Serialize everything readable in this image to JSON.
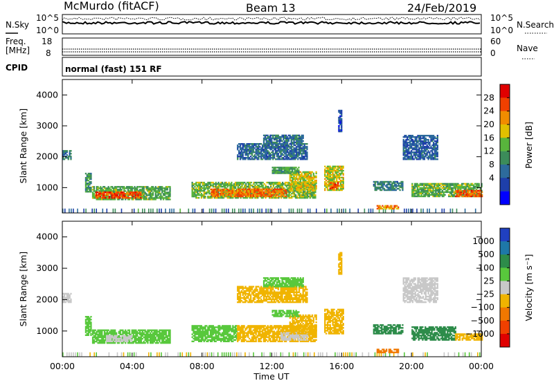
{
  "header": {
    "station": "McMurdo (fitACF)",
    "beam": "Beam 13",
    "date": "24/Feb/2019"
  },
  "noise_panel": {
    "left_label": "N.Sky",
    "right_label": "N.Search",
    "left_ticks": [
      "10^5",
      "10^0"
    ],
    "right_ticks": [
      "10^5",
      "10^0"
    ]
  },
  "freq_panel": {
    "left_label_1": "Freq.",
    "left_label_2": "[MHz]",
    "right_label": "Nave",
    "left_ticks": [
      "18",
      "8"
    ],
    "right_ticks": [
      "60",
      "0"
    ]
  },
  "cpid_panel": {
    "label": "CPID",
    "text": "normal (fast) 151 RF"
  },
  "chart_data": [
    {
      "type": "heatmap",
      "name_printed": "",
      "ylabel": "Slant Range [km]",
      "xlabel": "Time UT",
      "x_ticks": [
        "00:00",
        "04:00",
        "08:00",
        "12:00",
        "16:00",
        "20:00",
        "00:00"
      ],
      "y_ticks": [
        "1000",
        "2000",
        "3000",
        "4000"
      ],
      "xlim_hours": [
        0,
        24
      ],
      "ylim_km": [
        180,
        4500
      ],
      "colorbar": {
        "label": "Power [dB]",
        "ticks": [
          "28",
          "24",
          "20",
          "16",
          "12",
          "8",
          "4"
        ],
        "range": [
          0,
          30
        ],
        "colors": [
          "#0000ff",
          "#1e3faa",
          "#2d6b9c",
          "#3c8c5a",
          "#58b43c",
          "#e0c000",
          "#f08c00",
          "#f04000",
          "#e00000"
        ]
      },
      "regions": [
        {
          "t": [
            0.0,
            0.5
          ],
          "r": [
            1900,
            2200
          ],
          "v": 9
        },
        {
          "t": [
            1.3,
            1.6
          ],
          "r": [
            850,
            1450
          ],
          "v": 12
        },
        {
          "t": [
            1.7,
            6.2
          ],
          "r": [
            600,
            1050
          ],
          "v": 14
        },
        {
          "t": [
            1.9,
            4.5
          ],
          "r": [
            650,
            850
          ],
          "v": 25
        },
        {
          "t": [
            7.4,
            14.5
          ],
          "r": [
            650,
            1150
          ],
          "v": 15
        },
        {
          "t": [
            8.5,
            12.8
          ],
          "r": [
            700,
            950
          ],
          "v": 23
        },
        {
          "t": [
            13.0,
            14.5
          ],
          "r": [
            900,
            1500
          ],
          "v": 18
        },
        {
          "t": [
            10.0,
            14.0
          ],
          "r": [
            1900,
            2400
          ],
          "v": 8
        },
        {
          "t": [
            11.5,
            13.8
          ],
          "r": [
            2400,
            2700
          ],
          "v": 9
        },
        {
          "t": [
            12.0,
            13.5
          ],
          "r": [
            1450,
            1650
          ],
          "v": 13
        },
        {
          "t": [
            15.0,
            16.1
          ],
          "r": [
            900,
            1700
          ],
          "v": 18
        },
        {
          "t": [
            15.3,
            15.8
          ],
          "r": [
            950,
            1150
          ],
          "v": 24
        },
        {
          "t": [
            15.8,
            16.0
          ],
          "r": [
            2800,
            3500
          ],
          "v": 6
        },
        {
          "t": [
            18.0,
            19.2
          ],
          "r": [
            300,
            400
          ],
          "v": 22
        },
        {
          "t": [
            17.8,
            19.5
          ],
          "r": [
            900,
            1200
          ],
          "v": 10
        },
        {
          "t": [
            19.5,
            21.5
          ],
          "r": [
            1900,
            2700
          ],
          "v": 7
        },
        {
          "t": [
            20.0,
            24.0
          ],
          "r": [
            700,
            1150
          ],
          "v": 14
        },
        {
          "t": [
            22.5,
            24.0
          ],
          "r": [
            700,
            900
          ],
          "v": 24
        }
      ]
    },
    {
      "type": "heatmap",
      "name_printed": "",
      "ylabel": "Slant Range [km]",
      "xlabel": "Time UT",
      "x_ticks": [
        "00:00",
        "04:00",
        "08:00",
        "12:00",
        "16:00",
        "20:00",
        "00:00"
      ],
      "y_ticks": [
        "1000",
        "2000",
        "3000",
        "4000"
      ],
      "xlim_hours": [
        0,
        24
      ],
      "ylim_km": [
        180,
        4500
      ],
      "colorbar": {
        "label": "Velocity [m s⁻¹]",
        "ticks": [
          "1000",
          "500",
          "100",
          "25",
          "−25",
          "−100",
          "−500",
          "−1000"
        ],
        "colors": [
          "#2040c0",
          "#1e78a8",
          "#2d8c4a",
          "#58c83c",
          "#c8c8c8",
          "#f0b400",
          "#f07800",
          "#f04000",
          "#e00000"
        ]
      },
      "regions": [
        {
          "t": [
            0.0,
            0.5
          ],
          "r": [
            1900,
            2200
          ],
          "v": 0
        },
        {
          "t": [
            1.3,
            1.6
          ],
          "r": [
            850,
            1450
          ],
          "v": 60
        },
        {
          "t": [
            1.7,
            6.2
          ],
          "r": [
            600,
            1050
          ],
          "v": 60
        },
        {
          "t": [
            2.5,
            4.0
          ],
          "r": [
            650,
            850
          ],
          "v": 0
        },
        {
          "t": [
            7.4,
            10.0
          ],
          "r": [
            650,
            1150
          ],
          "v": 60
        },
        {
          "t": [
            10.0,
            14.5
          ],
          "r": [
            650,
            1150
          ],
          "v": -60
        },
        {
          "t": [
            12.5,
            14.0
          ],
          "r": [
            700,
            950
          ],
          "v": 0
        },
        {
          "t": [
            13.0,
            14.5
          ],
          "r": [
            900,
            1500
          ],
          "v": -60
        },
        {
          "t": [
            10.0,
            14.0
          ],
          "r": [
            1900,
            2400
          ],
          "v": -60
        },
        {
          "t": [
            11.5,
            13.8
          ],
          "r": [
            2400,
            2700
          ],
          "v": 60
        },
        {
          "t": [
            12.0,
            13.5
          ],
          "r": [
            1450,
            1650
          ],
          "v": 60
        },
        {
          "t": [
            15.0,
            16.1
          ],
          "r": [
            900,
            1700
          ],
          "v": -60
        },
        {
          "t": [
            15.8,
            16.0
          ],
          "r": [
            2800,
            3500
          ],
          "v": -60
        },
        {
          "t": [
            18.0,
            19.2
          ],
          "r": [
            300,
            400
          ],
          "v": -300
        },
        {
          "t": [
            17.8,
            19.5
          ],
          "r": [
            900,
            1200
          ],
          "v": 300
        },
        {
          "t": [
            19.5,
            21.5
          ],
          "r": [
            1900,
            2700
          ],
          "v": 0
        },
        {
          "t": [
            20.0,
            22.5
          ],
          "r": [
            700,
            1150
          ],
          "v": 300
        },
        {
          "t": [
            22.5,
            24.0
          ],
          "r": [
            700,
            900
          ],
          "v": -60
        }
      ]
    }
  ]
}
